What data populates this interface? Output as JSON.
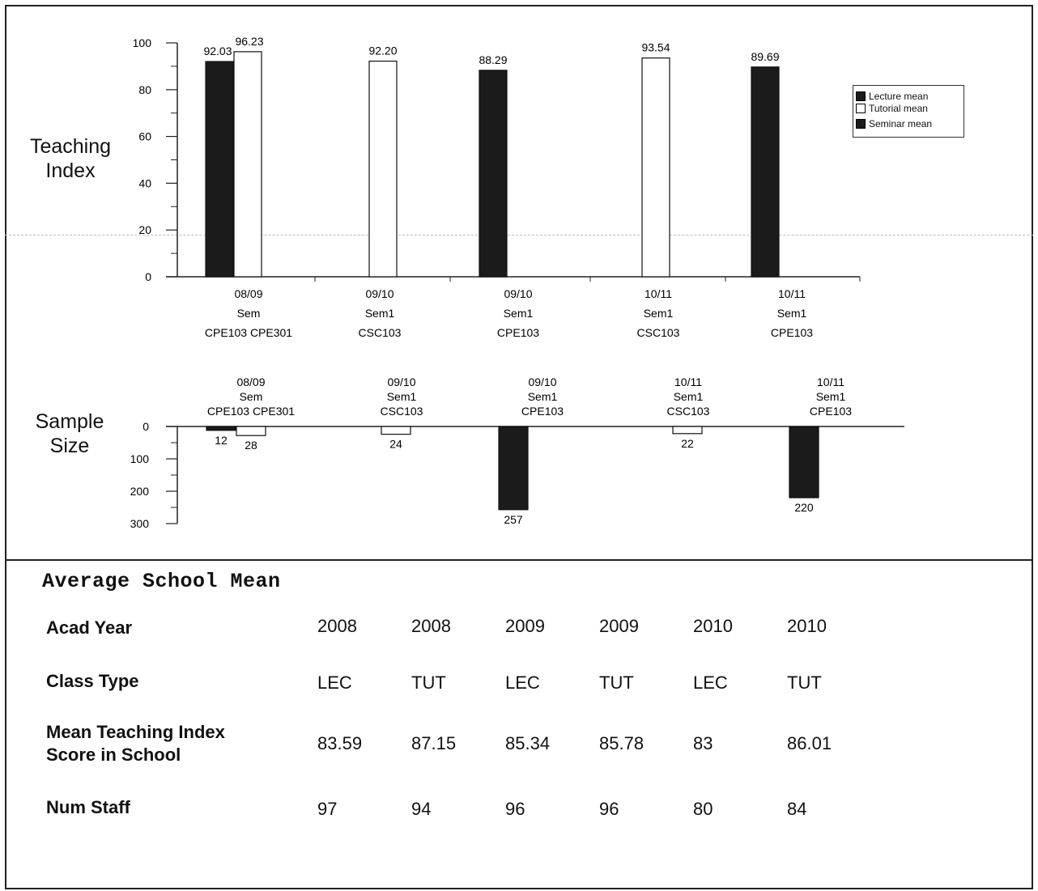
{
  "chart_data": [
    {
      "type": "bar",
      "ylabel_lines": [
        "Teaching",
        "Index"
      ],
      "ylim": [
        0,
        100
      ],
      "yticks": [
        0,
        20,
        40,
        60,
        80,
        100
      ],
      "categories": [
        [
          "08/09",
          "Sem",
          "CPE103 CPE301"
        ],
        [
          "09/10",
          "Sem1",
          "CSC103"
        ],
        [
          "09/10",
          "Sem1",
          "CPE103"
        ],
        [
          "10/11",
          "Sem1",
          "CSC103"
        ],
        [
          "10/11",
          "Sem1",
          "CPE103"
        ]
      ],
      "series": [
        {
          "name": "Lecture mean",
          "color": "#1b1b1b",
          "values": [
            92.03,
            null,
            88.29,
            null,
            89.69
          ],
          "labels": [
            "92.03",
            null,
            "88.29",
            null,
            "89.69"
          ]
        },
        {
          "name": "Tutorial mean",
          "color": "#ffffff",
          "values": [
            96.23,
            92.2,
            null,
            93.54,
            null
          ],
          "labels": [
            "96.23",
            "92.20",
            null,
            "93.54",
            null
          ]
        },
        {
          "name": "Seminar mean",
          "color": "#1b1b1b",
          "values": [
            null,
            null,
            null,
            null,
            null
          ],
          "labels": [
            null,
            null,
            null,
            null,
            null
          ]
        }
      ],
      "legend_position": "right",
      "grid": false
    },
    {
      "type": "bar",
      "ylabel_lines": [
        "Sample",
        "Size"
      ],
      "ylim": [
        0,
        300
      ],
      "inverted": true,
      "yticks": [
        0,
        100,
        200,
        300
      ],
      "categories": [
        [
          "08/09",
          "Sem",
          "CPE103 CPE301"
        ],
        [
          "09/10",
          "Sem1",
          "CSC103"
        ],
        [
          "09/10",
          "Sem1",
          "CPE103"
        ],
        [
          "10/11",
          "Sem1",
          "CSC103"
        ],
        [
          "10/11",
          "Sem1",
          "CPE103"
        ]
      ],
      "series": [
        {
          "name": "Lecture",
          "color": "#1b1b1b",
          "values": [
            12,
            null,
            257,
            null,
            220
          ],
          "labels": [
            "12",
            null,
            "257",
            null,
            "220"
          ]
        },
        {
          "name": "Tutorial",
          "color": "#ffffff",
          "values": [
            28,
            24,
            null,
            22,
            null
          ],
          "labels": [
            "28",
            "24",
            null,
            "22",
            null
          ]
        }
      ],
      "grid": false
    }
  ],
  "table": {
    "title": "Average School Mean",
    "rows": [
      {
        "label": "Acad Year",
        "values": [
          "2008",
          "2008",
          "2009",
          "2009",
          "2010",
          "2010"
        ]
      },
      {
        "label": "Class Type",
        "values": [
          "LEC",
          "TUT",
          "LEC",
          "TUT",
          "LEC",
          "TUT"
        ]
      },
      {
        "label": "Mean Teaching Index\nScore in School",
        "values": [
          "83.59",
          "87.15",
          "85.34",
          "85.78",
          "83",
          "86.01"
        ]
      },
      {
        "label": "Num Staff",
        "values": [
          "97",
          "94",
          "96",
          "96",
          "80",
          "84"
        ]
      }
    ]
  }
}
